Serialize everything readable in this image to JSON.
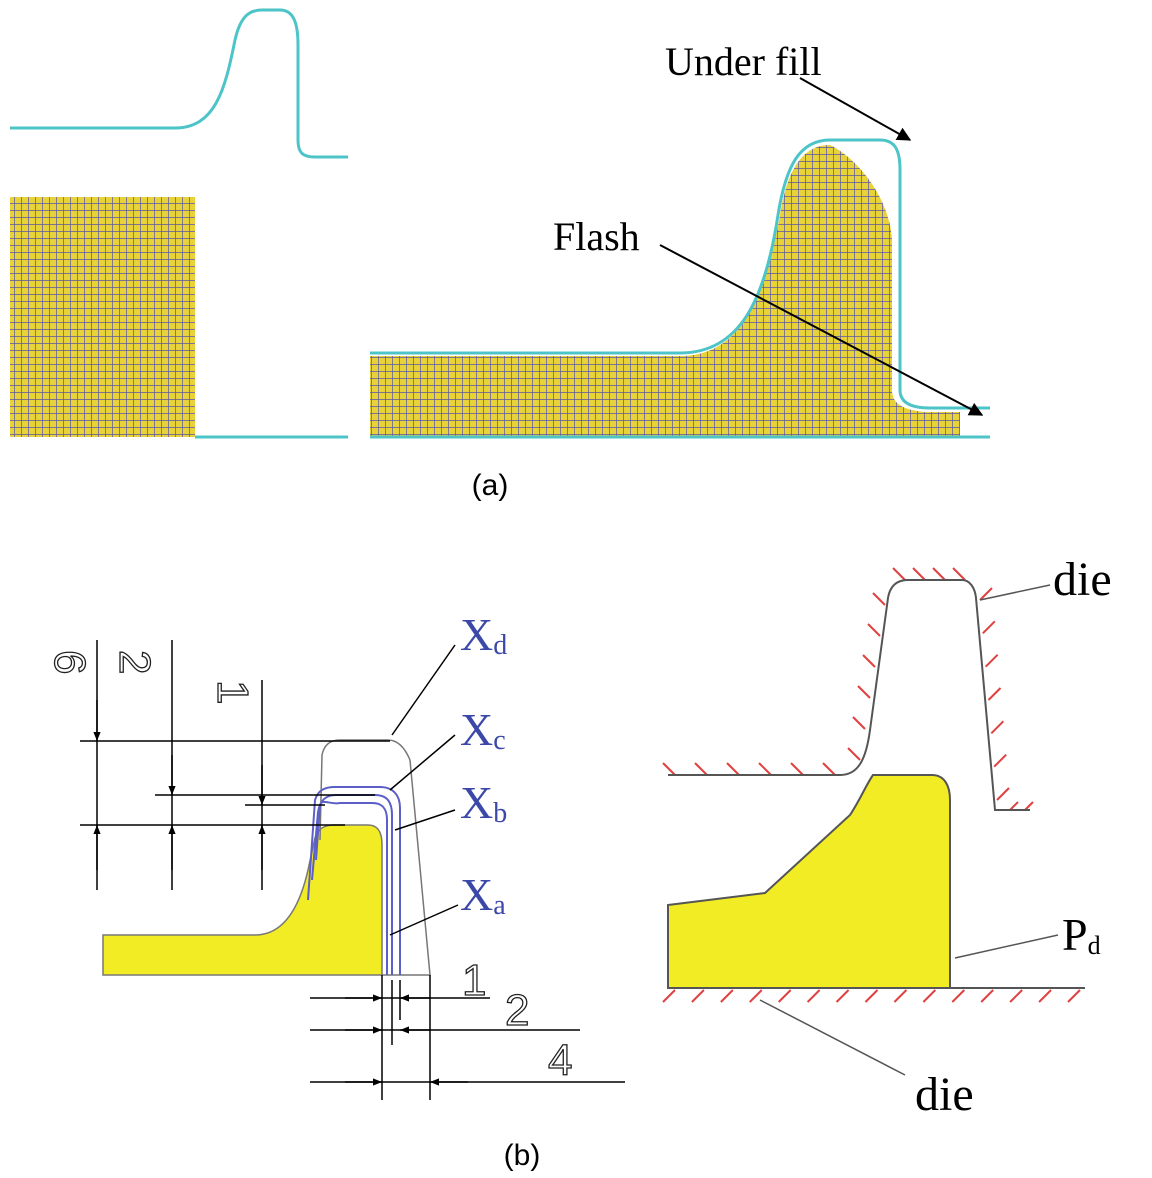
{
  "panel_a": {
    "labels": [
      "Under fill",
      "Flash"
    ],
    "caption": "(a)"
  },
  "panel_b": {
    "vertical_dims": [
      "6",
      "2",
      "1"
    ],
    "x_labels": [
      {
        "base": "X",
        "sub": "d"
      },
      {
        "base": "X",
        "sub": "c"
      },
      {
        "base": "X",
        "sub": "b"
      },
      {
        "base": "X",
        "sub": "a"
      }
    ],
    "horizontal_dims": [
      "1",
      "2",
      "4"
    ],
    "die_top": "die",
    "pd": {
      "base": "P",
      "sub": "d"
    },
    "die_bottom": "die",
    "caption": "(b)"
  }
}
